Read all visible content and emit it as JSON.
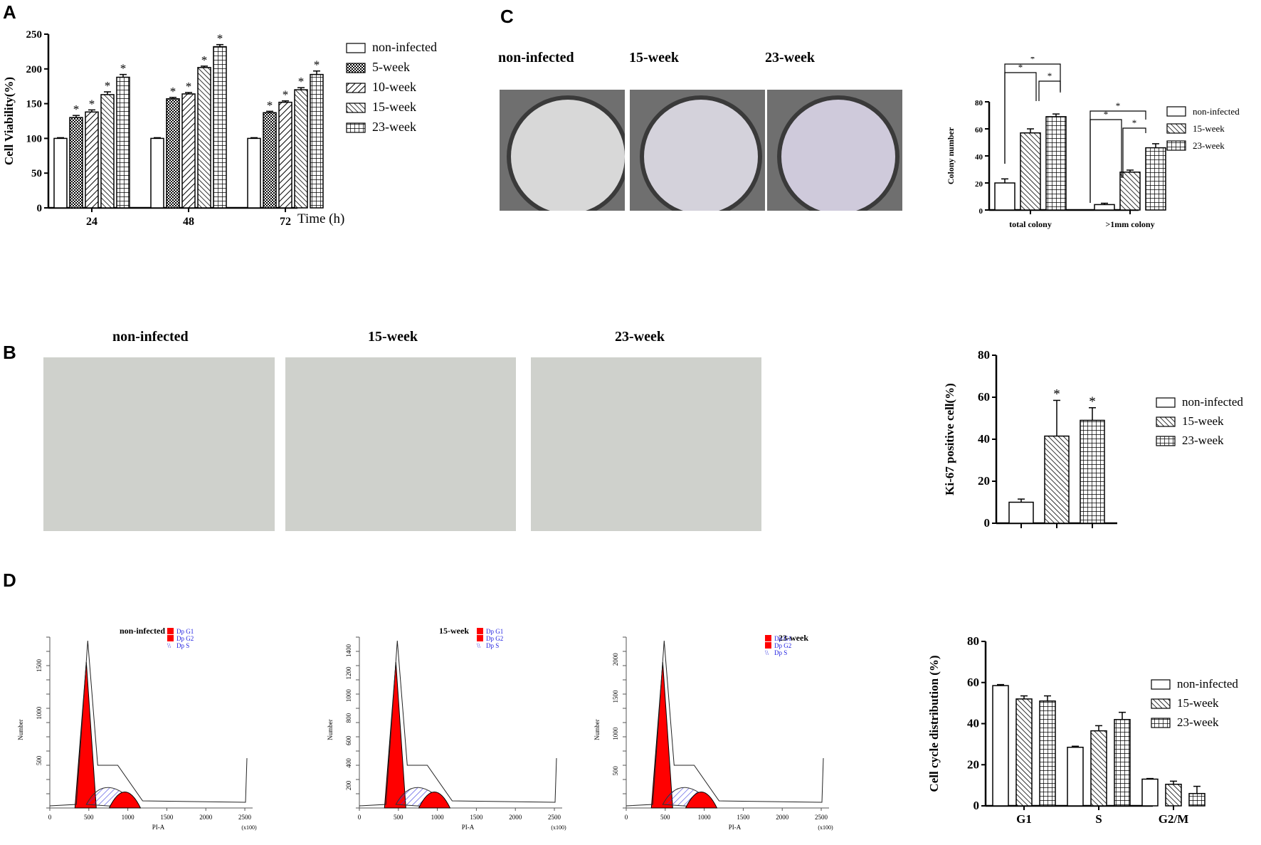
{
  "panels": {
    "A": {
      "letter": "A"
    },
    "B": {
      "letter": "B",
      "image_titles": [
        "non-infected",
        "15-week",
        "23-week"
      ]
    },
    "C": {
      "letter": "C",
      "image_titles": [
        "non-infected",
        "15-week",
        "23-week"
      ]
    },
    "D": {
      "letter": "D",
      "histogram_titles": [
        "non-infected",
        "15-week",
        "23-week"
      ],
      "histogram_legend": [
        "Dp G1",
        "Dp G2",
        "Dp S"
      ],
      "histogram_xlabel": "PI-A",
      "histogram_ylabel": "Number",
      "histogram_xunit": "(x100)",
      "histogram_xticks": [
        "0",
        "500",
        "1000",
        "1500",
        "2000",
        "2500"
      ]
    }
  },
  "colors": {
    "g1_fill": "#ff0000",
    "g2_fill": "#ff0000",
    "s_hatch": "#3a3adf",
    "legend_text": "#1f1fe0"
  },
  "chart_data": [
    {
      "id": "A",
      "type": "bar",
      "title": "",
      "xlabel": "Time (h)",
      "ylabel": "Cell Viability(%)",
      "categories": [
        "24",
        "48",
        "72"
      ],
      "ylim": [
        0,
        250
      ],
      "yticks": [
        0,
        50,
        100,
        150,
        200,
        250
      ],
      "legend_position": "right",
      "series": [
        {
          "name": "non-infected",
          "pattern": "empty",
          "values": [
            100,
            100,
            100
          ],
          "errors": [
            1,
            1,
            1
          ],
          "sig": [
            false,
            false,
            false
          ]
        },
        {
          "name": "5-week",
          "pattern": "checker",
          "values": [
            130,
            157,
            137
          ],
          "errors": [
            3,
            2,
            2
          ],
          "sig": [
            true,
            true,
            true
          ]
        },
        {
          "name": "10-week",
          "pattern": "diag-up",
          "values": [
            138,
            164,
            152
          ],
          "errors": [
            3,
            2,
            2
          ],
          "sig": [
            true,
            true,
            true
          ]
        },
        {
          "name": "15-week",
          "pattern": "diag-down",
          "values": [
            163,
            202,
            170
          ],
          "errors": [
            4,
            2,
            3
          ],
          "sig": [
            true,
            true,
            true
          ]
        },
        {
          "name": "23-week",
          "pattern": "grid",
          "values": [
            188,
            232,
            192
          ],
          "errors": [
            4,
            3,
            5
          ],
          "sig": [
            true,
            true,
            true
          ]
        }
      ]
    },
    {
      "id": "C",
      "type": "bar",
      "xlabel": "",
      "ylabel": "Colony number",
      "categories": [
        "total colony",
        ">1mm colony"
      ],
      "ylim": [
        0,
        80
      ],
      "yticks": [
        0,
        20,
        40,
        60,
        80
      ],
      "legend_position": "right",
      "series": [
        {
          "name": "non-infected",
          "pattern": "empty",
          "values": [
            20,
            4
          ],
          "errors": [
            3,
            1
          ]
        },
        {
          "name": "15-week",
          "pattern": "diag-down",
          "values": [
            57,
            28
          ],
          "errors": [
            3,
            1.5
          ]
        },
        {
          "name": "23-week",
          "pattern": "grid",
          "values": [
            69,
            46
          ],
          "errors": [
            2,
            3
          ]
        }
      ],
      "annotations": [
        "* non-infected vs 15-week",
        "* 15-week vs 23-week",
        "* non-infected vs 23-week"
      ]
    },
    {
      "id": "B",
      "type": "bar",
      "xlabel": "",
      "ylabel": "Ki-67 positive cell(%)",
      "categories": [
        "non-infected",
        "15-week",
        "23-week"
      ],
      "ylim": [
        0,
        80
      ],
      "yticks": [
        0,
        20,
        40,
        60,
        80
      ],
      "legend_position": "right",
      "series": [
        {
          "name": "non-infected",
          "pattern": "empty",
          "values": [
            10
          ],
          "errors": [
            1.5
          ]
        },
        {
          "name": "15-week",
          "pattern": "diag-down",
          "values": [
            41.5
          ],
          "errors": [
            17
          ],
          "sig": true
        },
        {
          "name": "23-week",
          "pattern": "grid",
          "values": [
            49
          ],
          "errors": [
            6
          ],
          "sig": true
        }
      ]
    },
    {
      "id": "D",
      "type": "bar",
      "xlabel": "",
      "ylabel": "Cell cycle distribution (%)",
      "categories": [
        "G1",
        "S",
        "G2/M"
      ],
      "ylim": [
        0,
        80
      ],
      "yticks": [
        0,
        20,
        40,
        60,
        80
      ],
      "legend_position": "right",
      "series": [
        {
          "name": "non-infected",
          "pattern": "empty",
          "values": [
            58.5,
            28.5,
            13
          ],
          "errors": [
            0.5,
            0.5,
            0.3
          ]
        },
        {
          "name": "15-week",
          "pattern": "diag-down",
          "values": [
            52,
            36.5,
            10.5
          ],
          "errors": [
            1.5,
            2.5,
            1.5
          ]
        },
        {
          "name": "23-week",
          "pattern": "grid",
          "values": [
            51,
            42,
            6
          ],
          "errors": [
            2.5,
            3.5,
            3.5
          ]
        }
      ]
    }
  ]
}
